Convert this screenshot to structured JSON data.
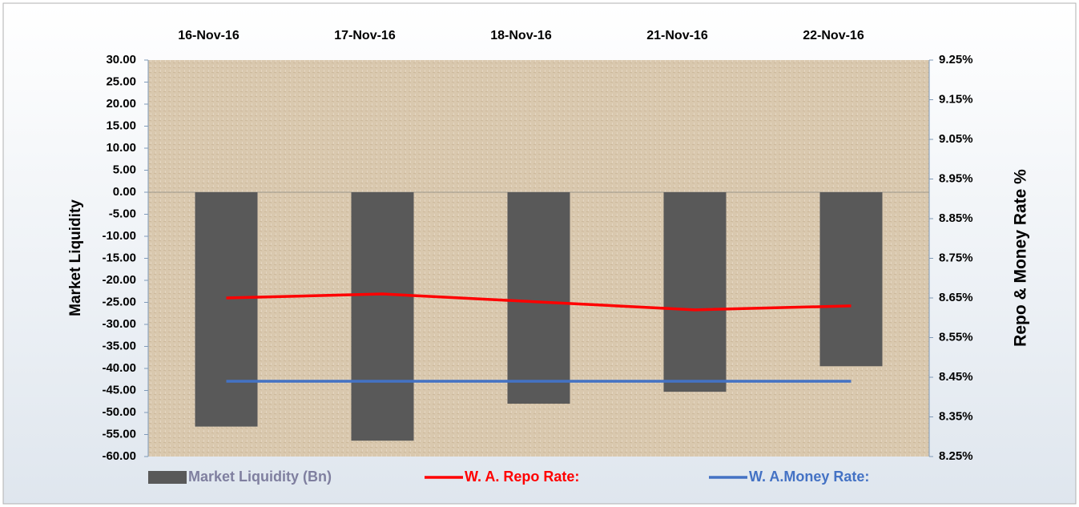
{
  "chart_data": {
    "type": "bar",
    "categories": [
      "16-Nov-16",
      "17-Nov-16",
      "18-Nov-16",
      "21-Nov-16",
      "22-Nov-16"
    ],
    "series": [
      {
        "name": "Market Liquidity (Bn)",
        "type": "bar",
        "color": "#595959",
        "values": [
          -53.2,
          -56.4,
          -48.0,
          -45.3,
          -39.5
        ]
      },
      {
        "name": "W. A. Repo Rate:",
        "type": "line",
        "axis": "y2",
        "color": "#ff0000",
        "values": [
          8.65,
          8.66,
          8.64,
          8.62,
          8.63
        ]
      },
      {
        "name": "W. A.Money Rate:",
        "type": "line",
        "axis": "y2",
        "color": "#4472c4",
        "values": [
          8.44,
          8.44,
          8.44,
          8.44,
          8.44
        ]
      }
    ],
    "y_label": "Market Liquidity",
    "y2_label": "Repo & Money Rate %",
    "ylim": [
      -60,
      30
    ],
    "yticks": [
      {
        "value": 30,
        "label": "30.00"
      },
      {
        "value": 25,
        "label": "25.00"
      },
      {
        "value": 20,
        "label": "20.00"
      },
      {
        "value": 15,
        "label": "15.00"
      },
      {
        "value": 10,
        "label": "10.00"
      },
      {
        "value": 5,
        "label": "5.00"
      },
      {
        "value": 0,
        "label": "0.00"
      },
      {
        "value": -5,
        "label": "-5.00"
      },
      {
        "value": -10,
        "label": "-10.00"
      },
      {
        "value": -15,
        "label": "-15.00"
      },
      {
        "value": -20,
        "label": "-20.00"
      },
      {
        "value": -25,
        "label": "-25.00"
      },
      {
        "value": -30,
        "label": "-30.00"
      },
      {
        "value": -35,
        "label": "-35.00"
      },
      {
        "value": -40,
        "label": "-40.00"
      },
      {
        "value": -45,
        "label": "-45.00"
      },
      {
        "value": -50,
        "label": "-50.00"
      },
      {
        "value": -55,
        "label": "-55.00"
      },
      {
        "value": -60,
        "label": "-60.00"
      }
    ],
    "y2lim": [
      8.25,
      9.25
    ],
    "y2ticks": [
      {
        "value": 9.25,
        "label": "9.25%"
      },
      {
        "value": 9.15,
        "label": "9.15%"
      },
      {
        "value": 9.05,
        "label": "9.05%"
      },
      {
        "value": 8.95,
        "label": "8.95%"
      },
      {
        "value": 8.85,
        "label": "8.85%"
      },
      {
        "value": 8.75,
        "label": "8.75%"
      },
      {
        "value": 8.65,
        "label": "8.65%"
      },
      {
        "value": 8.55,
        "label": "8.55%"
      },
      {
        "value": 8.45,
        "label": "8.45%"
      },
      {
        "value": 8.35,
        "label": "8.35%"
      },
      {
        "value": 8.25,
        "label": "8.25%"
      }
    ],
    "legend": "bottom"
  }
}
